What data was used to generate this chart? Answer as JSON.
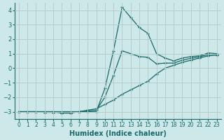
{
  "xlabel": "Humidex (Indice chaleur)",
  "xlim": [
    -0.5,
    23.5
  ],
  "ylim": [
    -3.5,
    4.5
  ],
  "xticks": [
    0,
    1,
    2,
    3,
    4,
    5,
    6,
    7,
    8,
    9,
    10,
    11,
    12,
    13,
    14,
    15,
    16,
    17,
    18,
    19,
    20,
    21,
    22,
    23
  ],
  "yticks": [
    -3,
    -2,
    -1,
    0,
    1,
    2,
    3,
    4
  ],
  "background_color": "#cce8e8",
  "grid_color": "#b0d0d0",
  "line_color": "#1a6868",
  "series": {
    "line1": [
      -3.0,
      -3.0,
      -3.0,
      -3.0,
      -3.0,
      -3.0,
      -3.0,
      -3.0,
      -3.0,
      -3.0,
      -1.4,
      1.2,
      4.2,
      3.5,
      2.8,
      2.4,
      1.0,
      0.7,
      0.5,
      0.7,
      0.8,
      0.85,
      1.05,
      1.0
    ],
    "line2": [
      -3.0,
      -3.0,
      -3.0,
      -3.0,
      -3.0,
      -3.1,
      -3.1,
      -3.0,
      -2.9,
      -2.8,
      -2.5,
      -2.2,
      -1.8,
      -1.5,
      -1.2,
      -0.9,
      -0.4,
      0.0,
      0.2,
      0.4,
      0.55,
      0.7,
      0.85,
      0.9
    ],
    "line3": [
      -3.0,
      -3.0,
      -3.0,
      -3.05,
      -3.05,
      -3.05,
      -3.05,
      -3.0,
      -2.95,
      -2.9,
      -2.0,
      -0.5,
      1.2,
      1.0,
      0.8,
      0.75,
      0.3,
      0.35,
      0.35,
      0.55,
      0.68,
      0.78,
      0.95,
      0.95
    ]
  }
}
